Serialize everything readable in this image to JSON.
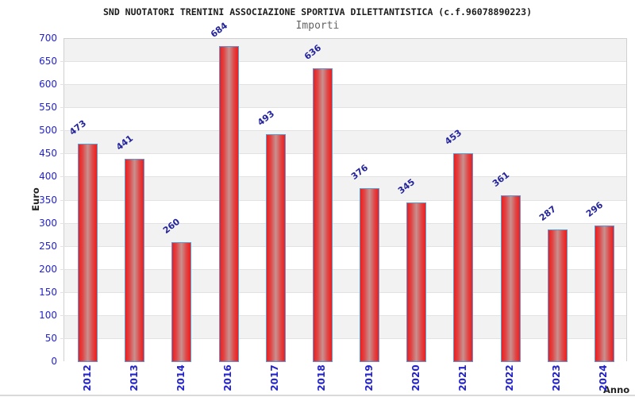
{
  "chart_data": {
    "type": "bar",
    "title": "SND NUOTATORI TRENTINI ASSOCIAZIONE SPORTIVA DILETTANTISTICA (c.f.96078890223)",
    "subtitle": "Importi",
    "xlabel": "Anno",
    "ylabel": "Euro",
    "categories": [
      "2012",
      "2013",
      "2014",
      "2016",
      "2017",
      "2018",
      "2019",
      "2020",
      "2021",
      "2022",
      "2023",
      "2024"
    ],
    "values": [
      473,
      441,
      260,
      684,
      493,
      636,
      376,
      345,
      453,
      361,
      287,
      296
    ],
    "ylim": [
      0,
      700
    ],
    "y_ticks": [
      0,
      50,
      100,
      150,
      200,
      250,
      300,
      350,
      400,
      450,
      500,
      550,
      600,
      650,
      700
    ],
    "grid": "horizontal, alternating shaded bands every 50",
    "legend": "none"
  },
  "colors": {
    "axis_label_blue": "#2323cd",
    "value_label_navy": "#23239b",
    "bar_edge_red": "#ee1e1e",
    "bar_mid_red": "#e04545",
    "bar_center_pink": "#c79290",
    "bar_border_blue": "#5b9bd5",
    "band_gray": "#f2f2f2",
    "band_white": "#ffffff",
    "grid_line": "#e2e2e2",
    "plot_border": "#d0d0d0",
    "title_color": "#1c1c1c",
    "subtitle_color": "#646464",
    "axis_title_color": "#222222"
  }
}
